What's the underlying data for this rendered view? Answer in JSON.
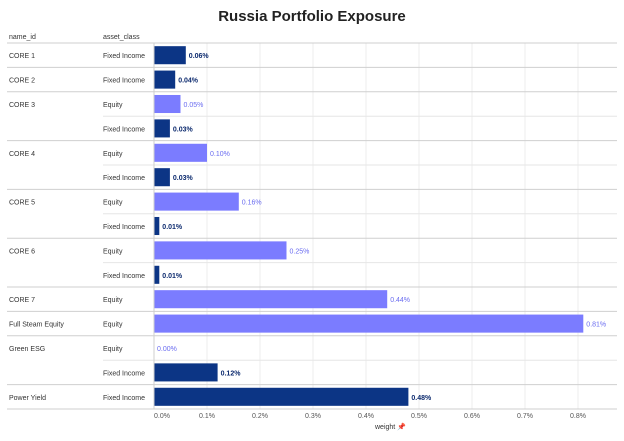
{
  "chart_data": {
    "type": "bar",
    "orientation": "horizontal",
    "title": "Russia Portfolio Exposure",
    "column_headers": [
      "name_id",
      "asset_class"
    ],
    "xlabel": "weight",
    "xlim": [
      0,
      0.8
    ],
    "x_ticks": [
      "0.0%",
      "0.1%",
      "0.2%",
      "0.3%",
      "0.4%",
      "0.5%",
      "0.6%",
      "0.7%",
      "0.8%"
    ],
    "groups": [
      {
        "name": "CORE 1",
        "rows": [
          {
            "asset_class": "Fixed Income",
            "value": 0.06,
            "label": "0.06%"
          }
        ]
      },
      {
        "name": "CORE 2",
        "rows": [
          {
            "asset_class": "Fixed Income",
            "value": 0.04,
            "label": "0.04%"
          }
        ]
      },
      {
        "name": "CORE 3",
        "rows": [
          {
            "asset_class": "Equity",
            "value": 0.05,
            "label": "0.05%"
          },
          {
            "asset_class": "Fixed Income",
            "value": 0.03,
            "label": "0.03%"
          }
        ]
      },
      {
        "name": "CORE 4",
        "rows": [
          {
            "asset_class": "Equity",
            "value": 0.1,
            "label": "0.10%"
          },
          {
            "asset_class": "Fixed Income",
            "value": 0.03,
            "label": "0.03%"
          }
        ]
      },
      {
        "name": "CORE 5",
        "rows": [
          {
            "asset_class": "Equity",
            "value": 0.16,
            "label": "0.16%"
          },
          {
            "asset_class": "Fixed Income",
            "value": 0.01,
            "label": "0.01%"
          }
        ]
      },
      {
        "name": "CORE 6",
        "rows": [
          {
            "asset_class": "Equity",
            "value": 0.25,
            "label": "0.25%"
          },
          {
            "asset_class": "Fixed Income",
            "value": 0.01,
            "label": "0.01%"
          }
        ]
      },
      {
        "name": "CORE 7",
        "rows": [
          {
            "asset_class": "Equity",
            "value": 0.44,
            "label": "0.44%"
          }
        ]
      },
      {
        "name": "Full Steam Equity",
        "rows": [
          {
            "asset_class": "Equity",
            "value": 0.81,
            "label": "0.81%"
          }
        ]
      },
      {
        "name": "Green ESG",
        "rows": [
          {
            "asset_class": "Equity",
            "value": 0.0,
            "label": "0.00%"
          },
          {
            "asset_class": "Fixed Income",
            "value": 0.12,
            "label": "0.12%"
          }
        ]
      },
      {
        "name": "Power Yield",
        "rows": [
          {
            "asset_class": "Fixed Income",
            "value": 0.48,
            "label": "0.48%"
          }
        ]
      }
    ],
    "colors": {
      "Equity": "#7b7cff",
      "Fixed Income": "#0c3585",
      "Equity_label": "#6a6cf0",
      "Fixed Income_label": "#0c2a6e"
    },
    "pin_icon": "pin-icon"
  }
}
